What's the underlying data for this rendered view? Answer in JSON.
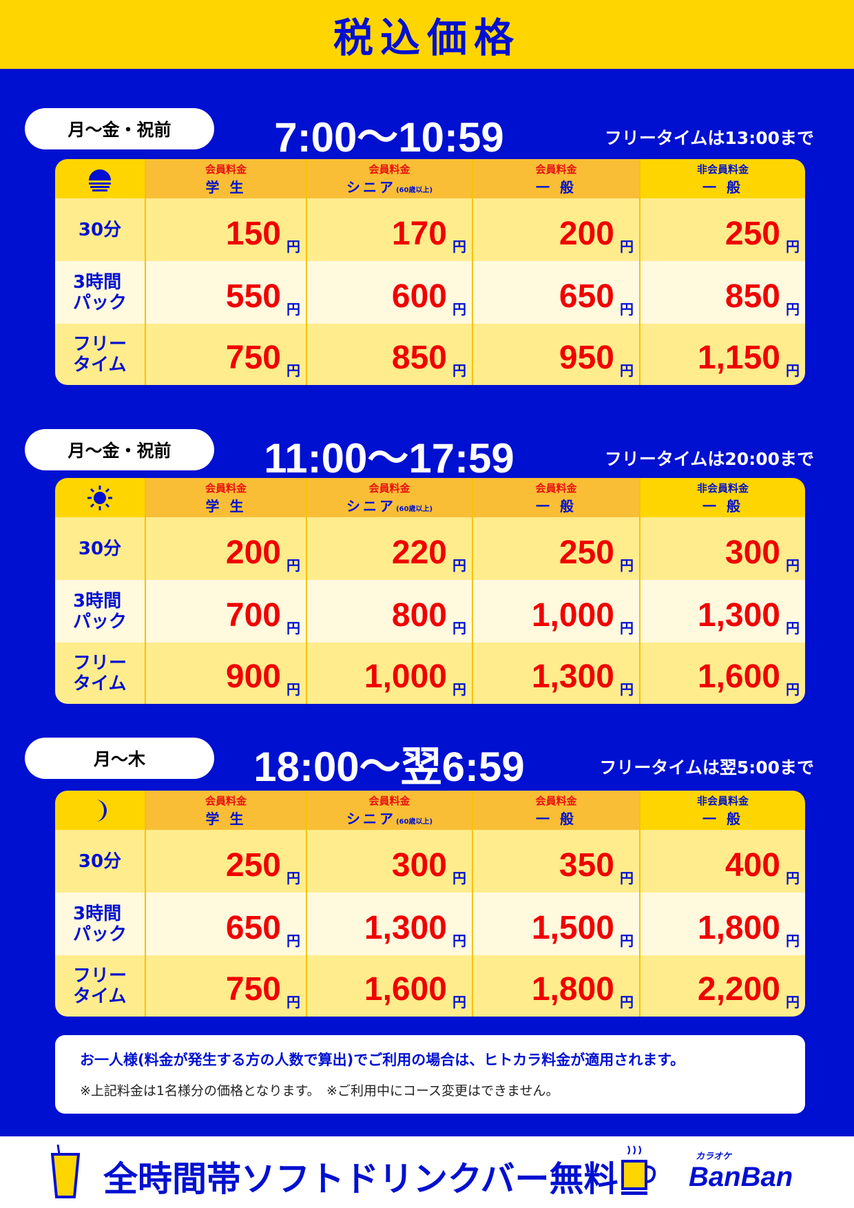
{
  "title": "税込価格",
  "headers": [
    {
      "kind": "",
      "sub": "",
      "nm": false
    },
    {
      "kind": "会員料金",
      "sub": "学 生",
      "nm": false
    },
    {
      "kind": "会員料金",
      "sub": "シニア",
      "small": "(60歳以上)",
      "nm": false
    },
    {
      "kind": "会員料金",
      "sub": "一 般",
      "nm": false
    },
    {
      "kind": "非会員料金",
      "sub": "一 般",
      "nm": true
    }
  ],
  "row_labels": [
    [
      "30分"
    ],
    [
      "3時間",
      "パック"
    ],
    [
      "フリー",
      "タイム"
    ]
  ],
  "yen": "円",
  "sections": [
    {
      "days": "月〜金・祝前",
      "time": "7:00〜10:59",
      "free": "フリータイムは13:00まで",
      "icon": "sunrise-icon",
      "prices": [
        [
          "150",
          "170",
          "200",
          "250"
        ],
        [
          "550",
          "600",
          "650",
          "850"
        ],
        [
          "750",
          "850",
          "950",
          "1,150"
        ]
      ]
    },
    {
      "days": "月〜金・祝前",
      "time": "11:00〜17:59",
      "free": "フリータイムは20:00まで",
      "icon": "sun-icon",
      "prices": [
        [
          "200",
          "220",
          "250",
          "300"
        ],
        [
          "700",
          "800",
          "1,000",
          "1,300"
        ],
        [
          "900",
          "1,000",
          "1,300",
          "1,600"
        ]
      ]
    },
    {
      "days": "月〜木",
      "time": "18:00〜翌6:59",
      "free": "フリータイムは翌5:00まで",
      "icon": "moon-icon",
      "prices": [
        [
          "250",
          "300",
          "350",
          "400"
        ],
        [
          "650",
          "1,300",
          "1,500",
          "1,800"
        ],
        [
          "750",
          "1,600",
          "1,800",
          "2,200"
        ]
      ]
    }
  ],
  "note": {
    "line1": "お一人様(料金が発生する方の人数で算出)でご利用の場合は、ヒトカラ料金が適用されます。",
    "line2": "※上記料金は1名様分の価格となります。　※ご利用中にコース変更はできません。"
  },
  "footer": {
    "text": "全時間帯ソフトドリンクバー無料",
    "logo_small": "カラオケ",
    "logo": "BanBan"
  },
  "colors": {
    "blue": "#0010D0",
    "yellow": "#FFD500",
    "red": "#F00000"
  }
}
